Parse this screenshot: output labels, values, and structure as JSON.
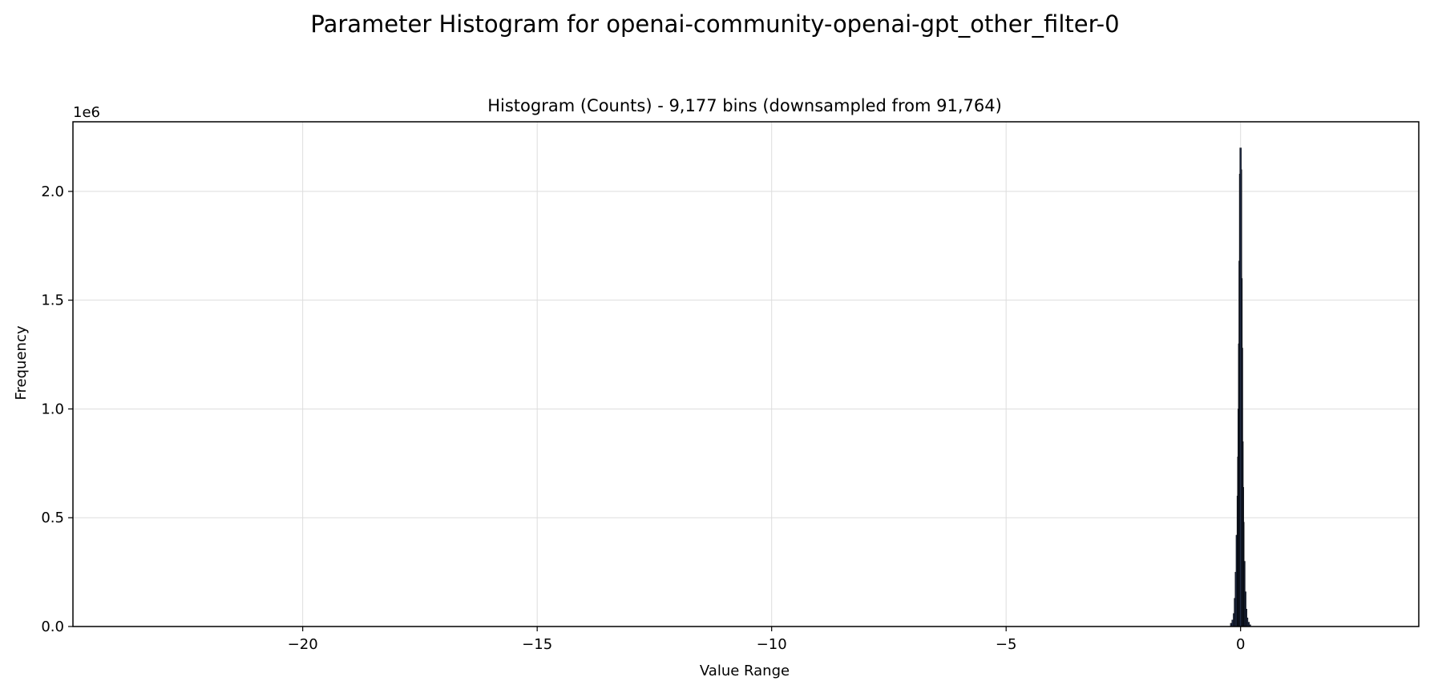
{
  "figure_title": "Parameter Histogram for openai-community-openai-gpt_other_filter-0",
  "chart_data": {
    "type": "bar",
    "title": "Histogram (Counts) - 9,177 bins (downsampled from 91,764)",
    "xlabel": "Value Range",
    "ylabel": "Frequency",
    "y_offset_label": "1e6",
    "xlim": [
      -24.9,
      3.8
    ],
    "ylim": [
      0,
      2320000
    ],
    "x_ticks": [
      -20,
      -15,
      -10,
      -5,
      0
    ],
    "x_tick_labels": [
      "−20",
      "−15",
      "−10",
      "−5",
      "0"
    ],
    "y_ticks": [
      0,
      500000,
      1000000,
      1500000,
      2000000
    ],
    "y_tick_labels": [
      "0.0",
      "0.5",
      "1.0",
      "1.5",
      "2.0"
    ],
    "grid": true,
    "bar_color": "#1f2a44",
    "bin_width": 0.0031,
    "x": [
      -0.2,
      -0.17,
      -0.14,
      -0.12,
      -0.1,
      -0.08,
      -0.06,
      -0.05,
      -0.04,
      -0.03,
      -0.02,
      -0.01,
      0.0,
      0.01,
      0.02,
      0.03,
      0.04,
      0.05,
      0.06,
      0.08,
      0.1,
      0.12,
      0.14,
      0.17,
      0.2
    ],
    "values": [
      15000,
      30000,
      60000,
      130000,
      250000,
      420000,
      600000,
      780000,
      1000000,
      1300000,
      1680000,
      2080000,
      2200000,
      2100000,
      1600000,
      1280000,
      850000,
      640000,
      480000,
      300000,
      160000,
      80000,
      40000,
      20000,
      8000
    ]
  }
}
